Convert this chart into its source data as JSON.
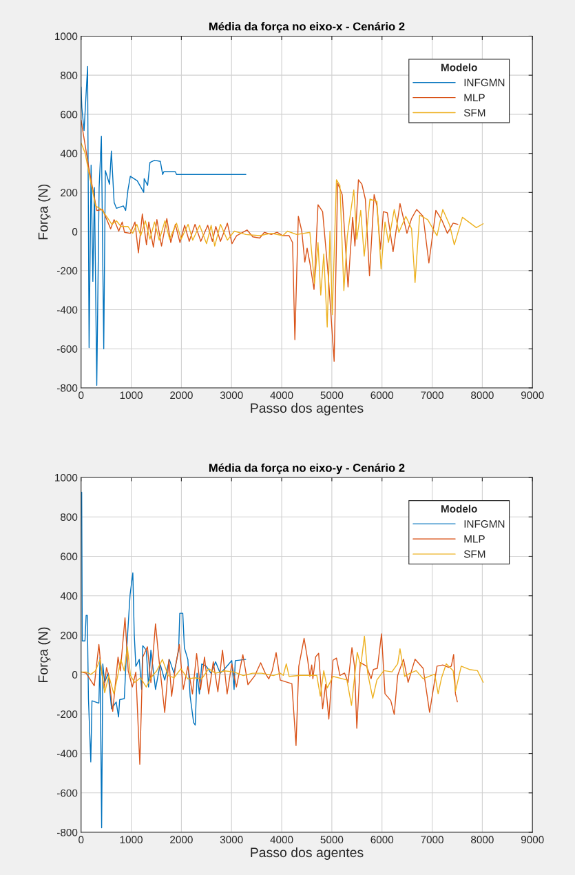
{
  "chart_data": [
    {
      "type": "line",
      "title": "Média da força no eixo-x - Cenário 2",
      "xlabel": "Passo dos agentes",
      "ylabel": "Força (N)",
      "legend_title": "Modelo",
      "legend": "top right",
      "grid": true,
      "xlim": [
        0,
        9000
      ],
      "xticks": [
        0,
        1000,
        2000,
        3000,
        4000,
        5000,
        6000,
        7000,
        8000,
        9000
      ],
      "ylim": [
        -800,
        1000
      ],
      "yticks": [
        -800,
        -600,
        -400,
        -200,
        0,
        200,
        400,
        600,
        800,
        1000
      ],
      "series": [
        {
          "name": "INFGMN",
          "color": "#0072bd",
          "x": [
            0,
            15,
            60,
            130,
            160,
            200,
            235,
            267,
            313,
            360,
            405,
            452,
            484,
            567,
            604,
            659,
            705,
            843,
            889,
            935,
            982,
            1120,
            1249,
            1258,
            1327,
            1373,
            1465,
            1581,
            1627,
            1650,
            1880,
            1903,
            3286
          ],
          "values": [
            740,
            634,
            517,
            845,
            -594,
            340,
            -255,
            225,
            -787,
            225,
            488,
            -600,
            312,
            242,
            412,
            149,
            119,
            131,
            108,
            213,
            283,
            260,
            201,
            271,
            236,
            353,
            365,
            359,
            292,
            306,
            306,
            292,
            292
          ]
        },
        {
          "name": "MLP",
          "color": "#d95319",
          "x": [
            0,
            152,
            313,
            428,
            590,
            659,
            751,
            820,
            866,
            982,
            1074,
            1143,
            1221,
            1304,
            1350,
            1442,
            1512,
            1604,
            1710,
            1788,
            1880,
            1972,
            2065,
            2157,
            2272,
            2387,
            2525,
            2618,
            2687,
            2779,
            2917,
            3009,
            3101,
            3309,
            3424,
            3562,
            3654,
            3793,
            3908,
            4023,
            4147,
            4217,
            4263,
            4332,
            4401,
            4461,
            4507,
            4562,
            4645,
            4724,
            4816,
            4931,
            5046,
            5115,
            5207,
            5323,
            5415,
            5461,
            5530,
            5599,
            5668,
            5751,
            5843,
            5899,
            5968,
            6028,
            6106,
            6221,
            6359,
            6498,
            6590,
            6691,
            6820,
            6935,
            7074,
            7189,
            7304,
            7419,
            7512
          ],
          "values": [
            570,
            330,
            108,
            113,
            14,
            61,
            2,
            49,
            -4,
            -9,
            49,
            -109,
            90,
            -68,
            49,
            -80,
            61,
            -74,
            67,
            -56,
            37,
            -56,
            32,
            -50,
            37,
            -50,
            32,
            -50,
            26,
            -50,
            43,
            -62,
            -21,
            8,
            -27,
            -33,
            -4,
            -15,
            -4,
            -21,
            -21,
            -56,
            -553,
            78,
            2,
            -156,
            -85,
            -161,
            -296,
            137,
            102,
            -232,
            -664,
            248,
            189,
            -284,
            73,
            -74,
            265,
            242,
            166,
            -226,
            189,
            131,
            -91,
            102,
            96,
            -103,
            143,
            -9,
            67,
            113,
            78,
            -161,
            108,
            61,
            -9,
            43,
            37
          ]
        },
        {
          "name": "SFM",
          "color": "#edb120",
          "x": [
            0,
            83,
            152,
            290,
            405,
            521,
            613,
            705,
            797,
            935,
            1028,
            1111,
            1189,
            1281,
            1373,
            1465,
            1558,
            1673,
            1765,
            1903,
            1995,
            2134,
            2226,
            2364,
            2502,
            2594,
            2664,
            2779,
            2917,
            3055,
            3286,
            3562,
            3793,
            4023,
            4115,
            4300,
            4562,
            4654,
            4724,
            4779,
            4839,
            4908,
            4963,
            5009,
            5092,
            5161,
            5240,
            5309,
            5438,
            5498,
            5576,
            5645,
            5760,
            5899,
            5982,
            6060,
            6129,
            6244,
            6336,
            6475,
            6590,
            6659,
            6751,
            6912,
            7097,
            7212,
            7350,
            7442,
            7604,
            7880,
            8018
          ],
          "values": [
            453,
            400,
            306,
            131,
            113,
            73,
            37,
            55,
            26,
            26,
            -9,
            37,
            -21,
            55,
            -39,
            49,
            -44,
            55,
            -39,
            43,
            -39,
            37,
            -44,
            32,
            -62,
            32,
            -74,
            37,
            -44,
            2,
            -15,
            -21,
            -9,
            -21,
            2,
            -15,
            -4,
            -267,
            -56,
            -325,
            -115,
            -489,
            2,
            -425,
            265,
            236,
            -302,
            -21,
            213,
            -39,
            108,
            -126,
            166,
            154,
            -191,
            49,
            -56,
            113,
            -4,
            78,
            14,
            -261,
            84,
            61,
            -21,
            113,
            32,
            -68,
            73,
            20,
            40
          ]
        }
      ]
    },
    {
      "type": "line",
      "title": "Média da força no eixo-y - Cenário 2",
      "xlabel": "Passo dos agentes",
      "ylabel": "Força (N)",
      "legend_title": "Modelo",
      "legend": "top right",
      "grid": true,
      "xlim": [
        0,
        9000
      ],
      "xticks": [
        0,
        1000,
        2000,
        3000,
        4000,
        5000,
        6000,
        7000,
        8000,
        9000
      ],
      "ylim": [
        -800,
        1000
      ],
      "yticks": [
        -800,
        -600,
        -400,
        -200,
        0,
        200,
        400,
        600,
        800,
        1000
      ],
      "series": [
        {
          "name": "INFGMN",
          "color": "#0072bd",
          "x": [
            12,
            24,
            78,
            101,
            124,
            147,
            194,
            217,
            355,
            378,
            410,
            433,
            470,
            539,
            608,
            700,
            747,
            770,
            862,
            908,
            977,
            1032,
            1060,
            1092,
            1161,
            1207,
            1230,
            1300,
            1346,
            1392,
            1484,
            1576,
            1668,
            1760,
            1853,
            1945,
            1968,
            2028,
            2060,
            2129,
            2175,
            2244,
            2276,
            2313,
            2359,
            2406,
            2498,
            2590,
            2682,
            2774,
            2866,
            3005,
            3051,
            3074,
            3281
          ],
          "values": [
            925,
            171,
            171,
            300,
            300,
            -122,
            -443,
            -133,
            -145,
            89,
            -777,
            54,
            -40,
            7,
            -174,
            -139,
            -215,
            -127,
            -122,
            124,
            405,
            516,
            206,
            42,
            77,
            -75,
            147,
            124,
            -63,
            124,
            -75,
            54,
            -28,
            77,
            7,
            124,
            311,
            311,
            136,
            77,
            -110,
            -244,
            -256,
            7,
            -98,
            54,
            42,
            7,
            65,
            7,
            30,
            71,
            -75,
            71,
            77
          ]
        },
        {
          "name": "MLP",
          "color": "#d95319",
          "x": [
            0,
            101,
            263,
            355,
            401,
            461,
            507,
            553,
            631,
            737,
            783,
            876,
            940,
            1023,
            1092,
            1171,
            1230,
            1323,
            1392,
            1484,
            1553,
            1668,
            1751,
            1806,
            1876,
            1959,
            2037,
            2129,
            2221,
            2304,
            2382,
            2461,
            2544,
            2636,
            2728,
            2820,
            2912,
            3005,
            3097,
            3226,
            3327,
            3465,
            3581,
            3673,
            3742,
            3811,
            3889,
            3972,
            4203,
            4286,
            4341,
            4447,
            4516,
            4562,
            4599,
            4622,
            4677,
            4737,
            4816,
            4876,
            4940,
            5023,
            5092,
            5161,
            5253,
            5323,
            5401,
            5452,
            5498,
            5567,
            5691,
            5783,
            5829,
            5908,
            5991,
            6060,
            6175,
            6244,
            6313,
            6429,
            6521,
            6659,
            6820,
            6949,
            7097,
            7212,
            7327,
            7382,
            7429,
            7465,
            7502
          ],
          "values": [
            13,
            7,
            -57,
            153,
            30,
            -69,
            36,
            -5,
            -186,
            89,
            19,
            288,
            19,
            -63,
            13,
            -455,
            89,
            141,
            -40,
            258,
            77,
            -192,
            77,
            -110,
            30,
            153,
            -75,
            42,
            -98,
            106,
            -75,
            89,
            -98,
            65,
            -87,
            124,
            -98,
            54,
            -63,
            101,
            -51,
            -5,
            60,
            7,
            -22,
            19,
            112,
            -28,
            -46,
            -360,
            42,
            184,
            78,
            -9,
            49,
            -21,
            90,
            108,
            -173,
            -50,
            -226,
            73,
            84,
            -4,
            8,
            -39,
            137,
            43,
            -272,
            61,
            43,
            -21,
            26,
            32,
            207,
            -97,
            -132,
            -202,
            -4,
            78,
            -39,
            78,
            32,
            -191,
            43,
            49,
            37,
            43,
            102,
            -97,
            -138
          ]
        },
        {
          "name": "SFM",
          "color": "#edb120",
          "x": [
            0,
            101,
            194,
            286,
            378,
            470,
            553,
            654,
            723,
            792,
            862,
            922,
            986,
            1069,
            1184,
            1300,
            1392,
            1507,
            1622,
            1737,
            1853,
            1991,
            2129,
            2267,
            2406,
            2544,
            2682,
            2866,
            3051,
            3235,
            3419,
            3604,
            3834,
            3972,
            4032,
            4092,
            4147,
            4378,
            4631,
            4700,
            4770,
            4839,
            4908,
            5023,
            5207,
            5300,
            5392,
            5507,
            5576,
            5650,
            5714,
            5816,
            5899,
            6037,
            6198,
            6313,
            6359,
            6452,
            6567,
            6682,
            6820,
            6982,
            7051,
            7120,
            7189,
            7281,
            7419,
            7465,
            7580,
            7742,
            7903,
            8018
          ],
          "values": [
            13,
            13,
            1,
            19,
            77,
            -92,
            -5,
            -98,
            -16,
            77,
            19,
            141,
            -5,
            -40,
            -16,
            -63,
            -16,
            19,
            77,
            -5,
            -16,
            30,
            -22,
            -16,
            -22,
            30,
            7,
            19,
            13,
            -5,
            7,
            7,
            -5,
            7,
            -4,
            55,
            -9,
            -4,
            -4,
            -4,
            -109,
            20,
            -68,
            -9,
            -21,
            -27,
            -156,
            113,
            43,
            195,
            8,
            -120,
            -27,
            20,
            14,
            55,
            131,
            -9,
            8,
            20,
            -21,
            -4,
            2,
            -97,
            -15,
            55,
            20,
            -85,
            43,
            26,
            20,
            -39
          ]
        }
      ]
    }
  ]
}
